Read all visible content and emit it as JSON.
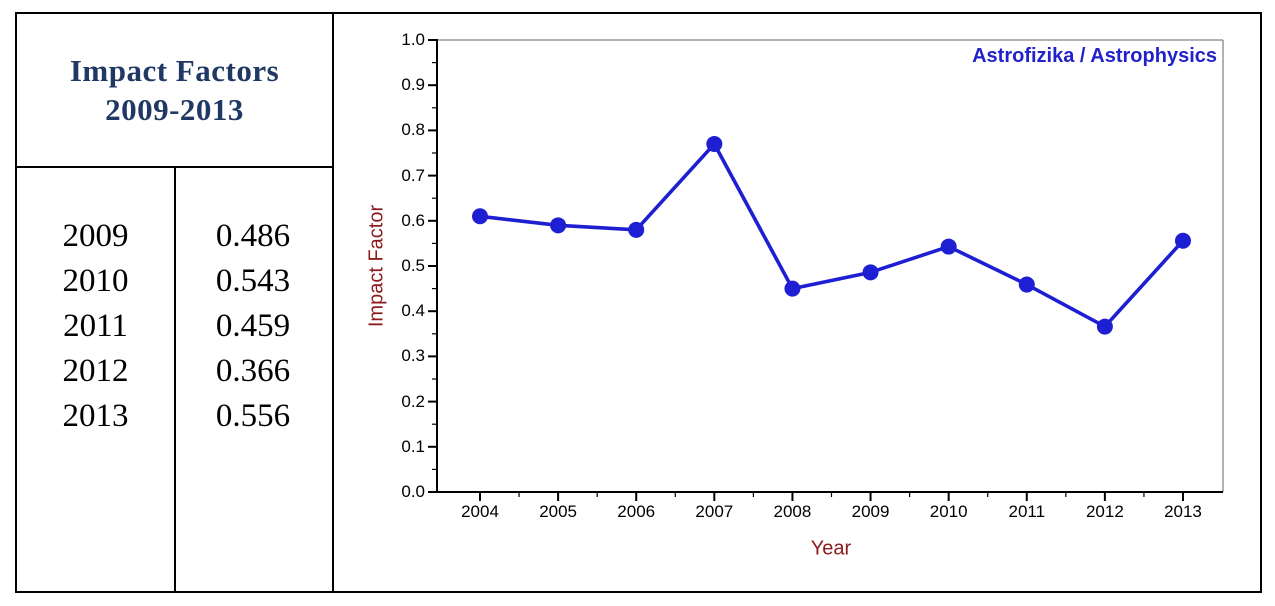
{
  "table": {
    "title_line1": "Impact Factors",
    "title_line2": "2009-2013",
    "rows": [
      {
        "year": "2009",
        "value": "0.486"
      },
      {
        "year": "2010",
        "value": "0.543"
      },
      {
        "year": "2011",
        "value": "0.459"
      },
      {
        "year": "2012",
        "value": "0.366"
      },
      {
        "year": "2013",
        "value": "0.556"
      }
    ]
  },
  "chart": {
    "series_label": "Astrofizika / Astrophysics",
    "xlabel": "Year",
    "ylabel": "Impact Factor",
    "colors": {
      "series_blue": "#1e1ed2",
      "label_blue": "#2222cc",
      "axis_red": "#8e1b1b",
      "table_navy": "#1f3864",
      "frame_gray": "#666666",
      "axis_black": "#000000"
    }
  },
  "chart_data": {
    "type": "line",
    "title": "Astrofizika / Astrophysics",
    "xlabel": "Year",
    "ylabel": "Impact Factor",
    "x": [
      2004,
      2005,
      2006,
      2007,
      2008,
      2009,
      2010,
      2011,
      2012,
      2013
    ],
    "series": [
      {
        "name": "Astrofizika / Astrophysics",
        "values": [
          0.61,
          0.59,
          0.58,
          0.77,
          0.45,
          0.486,
          0.543,
          0.459,
          0.366,
          0.556
        ]
      }
    ],
    "ylim": [
      0.0,
      1.0
    ],
    "y_major_step": 0.1,
    "y_minor_step": 0.05,
    "x_major_step": 1,
    "x_minor_step": 0.5,
    "grid": false,
    "legend_position": "top-right-inside",
    "marker": "circle",
    "line_color": "#1e1ed2"
  }
}
